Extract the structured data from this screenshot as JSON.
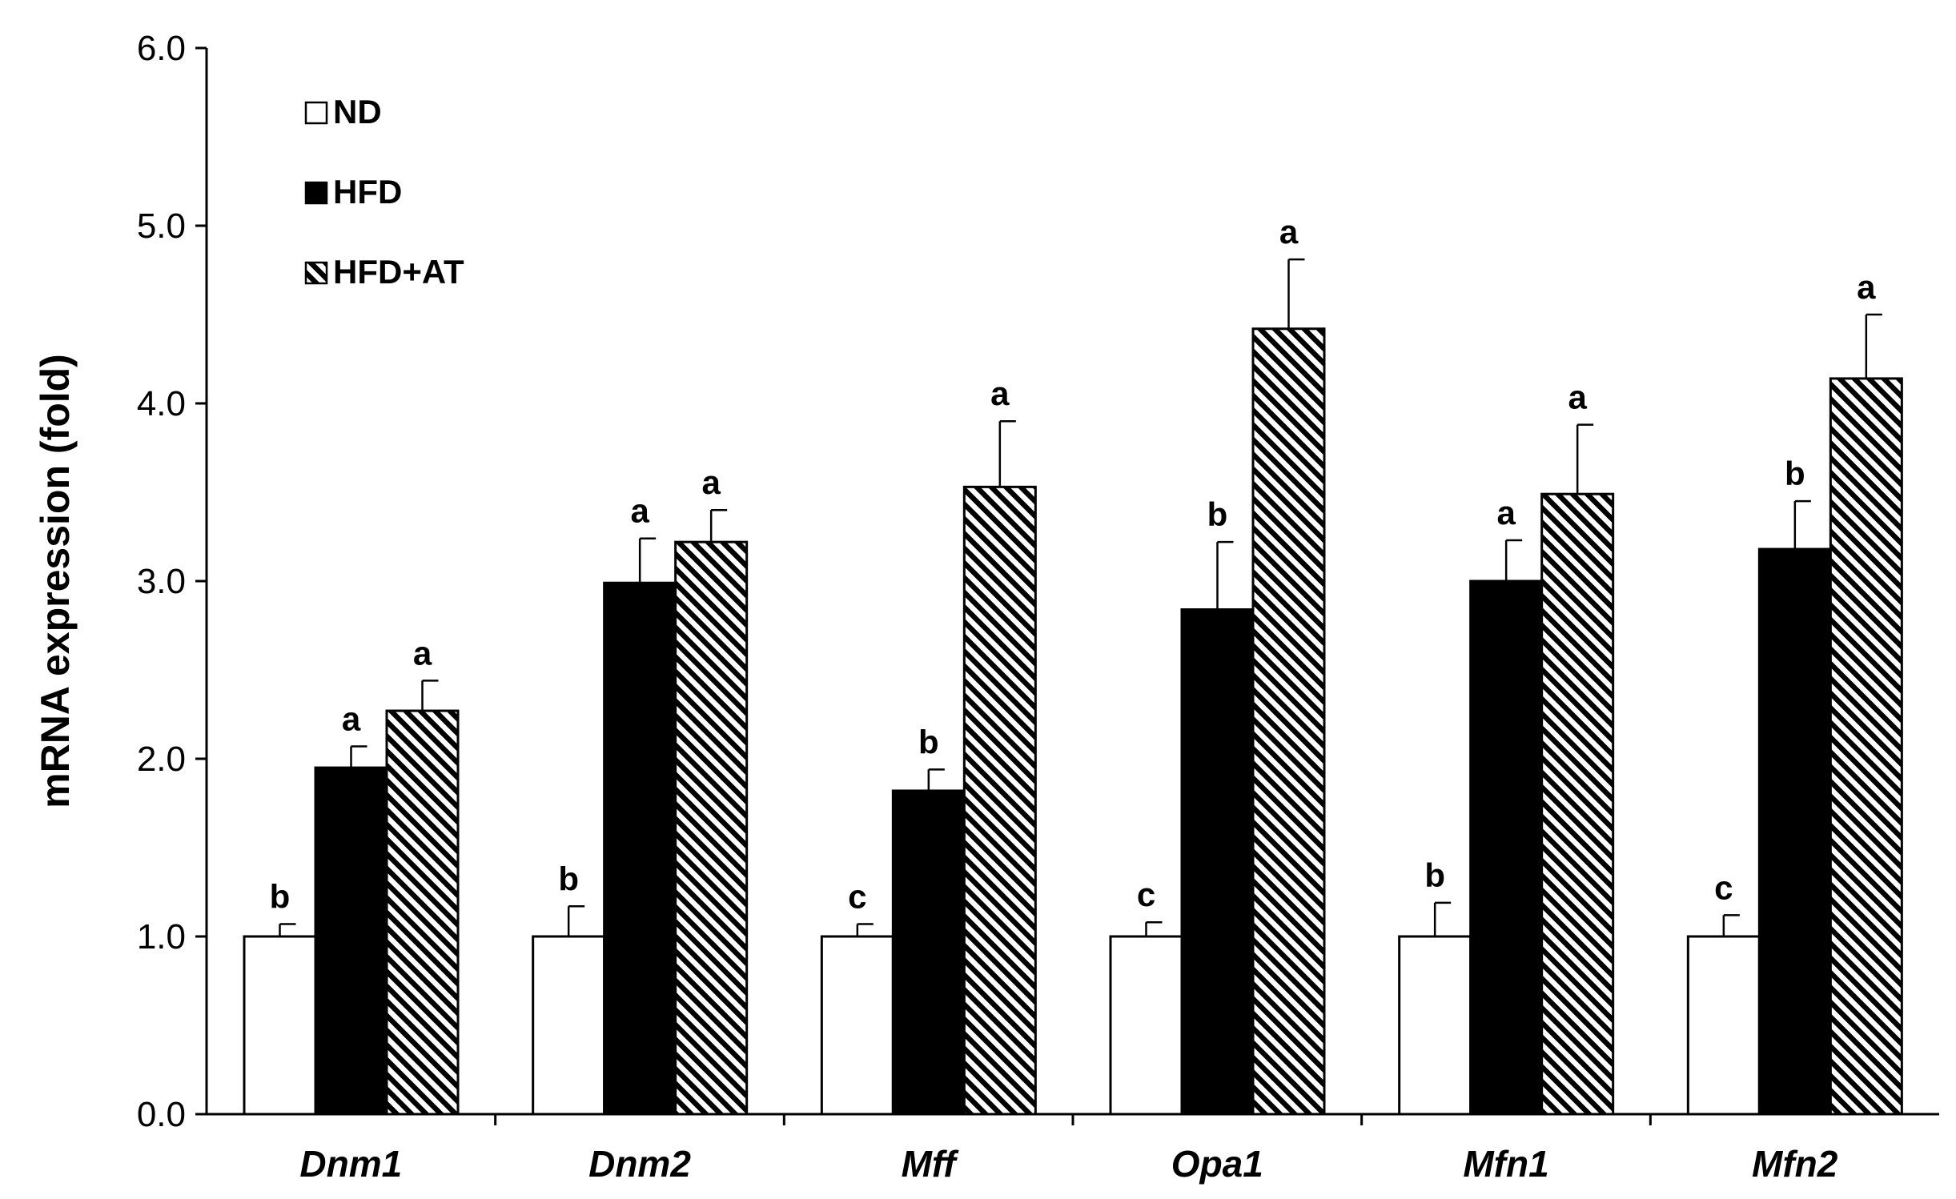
{
  "chart_data": {
    "type": "bar",
    "title": "",
    "xlabel": "",
    "ylabel": "mRNA expression (fold)",
    "ylim": [
      0,
      6
    ],
    "yticks": [
      "0.0",
      "1.0",
      "2.0",
      "3.0",
      "4.0",
      "5.0",
      "6.0"
    ],
    "categories": [
      "Dnm1",
      "Dnm2",
      "Mff",
      "Opa1",
      "Mfn1",
      "Mfn2"
    ],
    "legend_position": "top-left",
    "grid": false,
    "series": [
      {
        "name": "ND",
        "fill": "white",
        "values": [
          1.0,
          1.0,
          1.0,
          1.0,
          1.0,
          1.0
        ],
        "errors": [
          0.07,
          0.17,
          0.07,
          0.08,
          0.19,
          0.12
        ],
        "labels": [
          "b",
          "b",
          "c",
          "c",
          "b",
          "c"
        ]
      },
      {
        "name": "HFD",
        "fill": "black",
        "values": [
          1.95,
          2.99,
          1.82,
          2.84,
          3.0,
          3.18
        ],
        "errors": [
          0.12,
          0.25,
          0.12,
          0.38,
          0.23,
          0.27
        ],
        "labels": [
          "a",
          "a",
          "b",
          "b",
          "a",
          "b"
        ]
      },
      {
        "name": "HFD+AT",
        "fill": "hatched",
        "values": [
          2.27,
          3.22,
          3.53,
          4.42,
          3.49,
          4.14
        ],
        "errors": [
          0.17,
          0.18,
          0.37,
          0.39,
          0.39,
          0.36
        ],
        "labels": [
          "a",
          "a",
          "a",
          "a",
          "a",
          "a"
        ]
      }
    ]
  }
}
